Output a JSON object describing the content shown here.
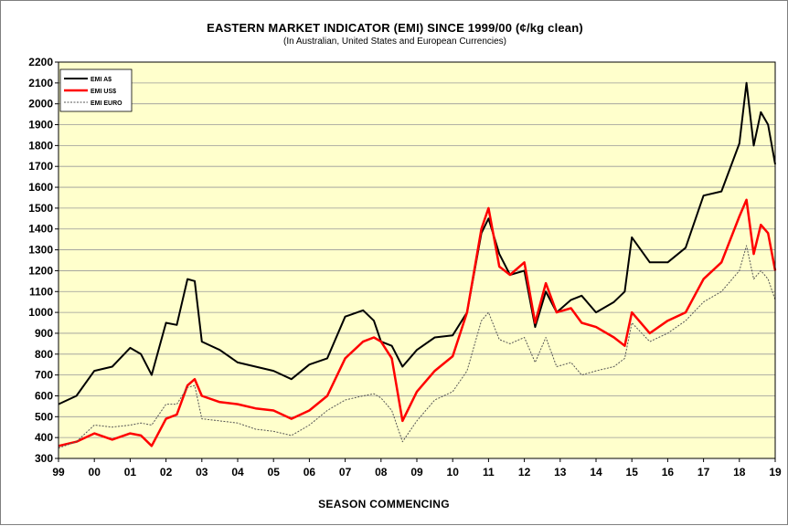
{
  "colors": {
    "plot_bg": "#ffffcc",
    "aud": "#000000",
    "usd": "#ff0000",
    "euro": "#555555",
    "grid": "#999999"
  },
  "chart_data": {
    "type": "line",
    "title": "EASTERN  MARKET INDICATOR (EMI) SINCE 1999/00 (¢/kg clean)",
    "subtitle": "(In Australian, United States and European Currencies)",
    "xlabel": "SEASON  COMMENCING",
    "ylabel": "",
    "xlim": [
      1999,
      2019
    ],
    "ylim": [
      300,
      2200
    ],
    "xticks": [
      "99",
      "00",
      "01",
      "02",
      "03",
      "04",
      "05",
      "06",
      "07",
      "08",
      "09",
      "10",
      "11",
      "12",
      "13",
      "14",
      "15",
      "16",
      "17",
      "18",
      "19"
    ],
    "yticks": [
      300,
      400,
      500,
      600,
      700,
      800,
      900,
      1000,
      1100,
      1200,
      1300,
      1400,
      1500,
      1600,
      1700,
      1800,
      1900,
      2000,
      2100,
      2200
    ],
    "grid": true,
    "legend_position": "top-left",
    "x": [
      1999.0,
      1999.5,
      2000.0,
      2000.5,
      2001.0,
      2001.3,
      2001.6,
      2002.0,
      2002.3,
      2002.6,
      2002.8,
      2003.0,
      2003.5,
      2004.0,
      2004.5,
      2005.0,
      2005.5,
      2006.0,
      2006.5,
      2007.0,
      2007.5,
      2007.8,
      2008.0,
      2008.3,
      2008.6,
      2009.0,
      2009.5,
      2010.0,
      2010.4,
      2010.8,
      2011.0,
      2011.3,
      2011.6,
      2012.0,
      2012.3,
      2012.6,
      2012.9,
      2013.3,
      2013.6,
      2014.0,
      2014.5,
      2014.8,
      2015.0,
      2015.5,
      2016.0,
      2016.5,
      2017.0,
      2017.5,
      2018.0,
      2018.2,
      2018.4,
      2018.6,
      2018.8,
      2019.0
    ],
    "series": [
      {
        "name": "EMI A$",
        "values": [
          560,
          600,
          720,
          740,
          830,
          800,
          700,
          950,
          940,
          1160,
          1150,
          860,
          820,
          760,
          740,
          720,
          680,
          750,
          780,
          980,
          1010,
          960,
          860,
          840,
          740,
          820,
          880,
          890,
          1000,
          1380,
          1450,
          1280,
          1180,
          1200,
          930,
          1100,
          1000,
          1060,
          1080,
          1000,
          1050,
          1100,
          1360,
          1240,
          1240,
          1310,
          1560,
          1580,
          1810,
          2100,
          1800,
          1960,
          1900,
          1710
        ]
      },
      {
        "name": "EMI US$",
        "values": [
          360,
          380,
          420,
          390,
          420,
          410,
          360,
          490,
          510,
          650,
          680,
          600,
          570,
          560,
          540,
          530,
          490,
          530,
          600,
          780,
          860,
          880,
          860,
          780,
          480,
          620,
          720,
          790,
          1000,
          1400,
          1500,
          1220,
          1180,
          1240,
          950,
          1140,
          1000,
          1020,
          950,
          930,
          880,
          840,
          1000,
          900,
          960,
          1000,
          1160,
          1240,
          1460,
          1540,
          1280,
          1420,
          1380,
          1200
        ]
      },
      {
        "name": "EMI EURO",
        "values": [
          350,
          380,
          460,
          450,
          460,
          470,
          460,
          560,
          560,
          640,
          650,
          490,
          480,
          470,
          440,
          430,
          410,
          460,
          530,
          580,
          600,
          610,
          590,
          530,
          380,
          480,
          580,
          620,
          720,
          960,
          1000,
          870,
          850,
          880,
          760,
          880,
          740,
          760,
          700,
          720,
          740,
          780,
          950,
          860,
          900,
          960,
          1050,
          1100,
          1200,
          1320,
          1160,
          1200,
          1160,
          1060
        ]
      }
    ]
  }
}
